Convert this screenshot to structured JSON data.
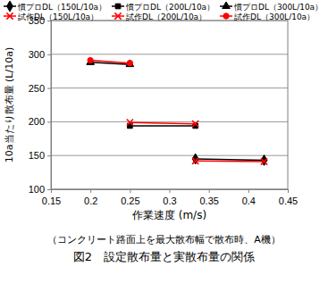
{
  "chart_data": {
    "type": "line",
    "title": "図2　設定散布量と実散布量の関係",
    "subtitle": "（コンクリート路面上を最大散布幅で散布時、A機）",
    "x_label": "作業速度 (m/s)",
    "y_label": "10a当たり散布量 (L/10a)",
    "xlim": [
      0.15,
      0.45
    ],
    "xticks": [
      0.15,
      0.2,
      0.25,
      0.3,
      0.35,
      0.4,
      0.45
    ],
    "ylim": [
      100,
      350
    ],
    "yticks": [
      100,
      150,
      200,
      250,
      300,
      350
    ],
    "grid": true,
    "legend": "top",
    "series": [
      {
        "name": "慣プロDL（150L/10a）",
        "color": "#000000",
        "marker": "diamond",
        "x": [
          0.333,
          0.42
        ],
        "values": [
          145,
          143
        ]
      },
      {
        "name": "慣プロDL（200L/10a）",
        "color": "#000000",
        "marker": "square",
        "x": [
          0.25,
          0.333
        ],
        "values": [
          194,
          194
        ]
      },
      {
        "name": "慣プロDL（300L/10a）",
        "color": "#000000",
        "marker": "triangle",
        "x": [
          0.2,
          0.25
        ],
        "values": [
          288,
          285
        ]
      },
      {
        "name": "試作DL（150L/10a）",
        "color": "#ff0000",
        "marker": "x",
        "x": [
          0.333,
          0.42
        ],
        "values": [
          142,
          141
        ]
      },
      {
        "name": "試作DL（200L/10a）",
        "color": "#ff0000",
        "marker": "x",
        "x": [
          0.25,
          0.333
        ],
        "values": [
          199,
          197
        ]
      },
      {
        "name": "試作DL（300L/10a）",
        "color": "#ff0000",
        "marker": "circle",
        "x": [
          0.2,
          0.25
        ],
        "values": [
          291,
          287
        ]
      }
    ]
  }
}
